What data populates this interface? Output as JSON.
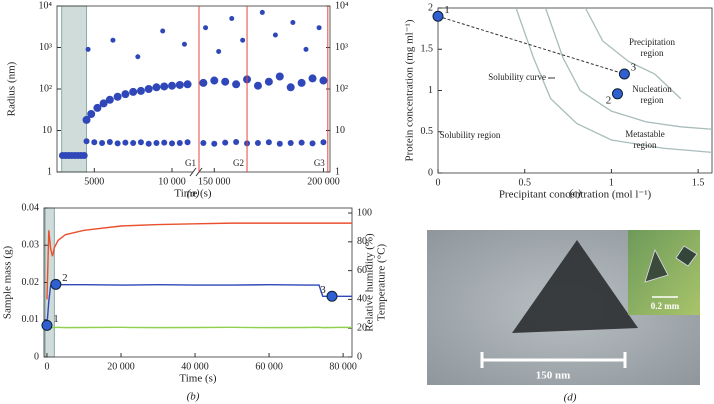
{
  "chart_data": [
    {
      "type": "scatter",
      "caption": "(a)",
      "x_label": "Time (s)",
      "y_label": "Radius (nm)",
      "log_y": true,
      "x_segments": [
        {
          "xlim": [
            2600,
            11350
          ],
          "xticks": [
            5000,
            {
              "value": 10000,
              "label": "10 000"
            }
          ]
        },
        {
          "xlim": [
            143000,
            203000
          ],
          "xticks": [
            {
              "value": 150000,
              "label": "150 000"
            },
            {
              "value": 200000,
              "label": "200 000"
            }
          ]
        }
      ],
      "ylim": [
        1,
        10000
      ],
      "yticks": [
        1,
        10,
        {
          "value": 100,
          "label": "10²"
        },
        {
          "value": 1000,
          "label": "10³"
        },
        {
          "value": 10000,
          "label": "10⁴"
        }
      ],
      "shaded_span": [
        2900,
        4500
      ],
      "shade_color": "#cfdcd9",
      "series": [
        {
          "color": "#2f47b8",
          "marker_size": 3.5,
          "x": [
            2950,
            3150,
            3350,
            3550,
            3750,
            3950,
            4150,
            4350
          ],
          "values": [
            2.5,
            2.5,
            2.5,
            2.5,
            2.5,
            2.5,
            2.5,
            2.5
          ]
        },
        {
          "color": "#2f47b8",
          "marker_size": 3,
          "x": [
            4500,
            5000,
            5500,
            6000,
            6500,
            7000,
            7500,
            8000,
            8500,
            9000,
            9500,
            10000,
            10500,
            11000,
            145000,
            150000,
            155000,
            160000,
            165000,
            170000,
            175000,
            180000,
            185000,
            190000,
            195000,
            200000
          ],
          "values": [
            5.5,
            5.2,
            5,
            5.3,
            4.9,
            5.1,
            5,
            5.2,
            4.8,
            5,
            5.1,
            4.9,
            5,
            5.2,
            5,
            4.8,
            5.1,
            5.3,
            4.9,
            5,
            5.2,
            4.8,
            5,
            5.1,
            4.9,
            5.2
          ]
        },
        {
          "color": "#2f47b8",
          "marker_size": 4,
          "x": [
            4500,
            4800,
            5200,
            5600,
            6000,
            6500,
            7000,
            7500,
            8000,
            8500,
            9000,
            9500,
            10000,
            10500,
            11000,
            145000,
            150000,
            155000,
            160000,
            165000,
            170000,
            175000,
            180000,
            185000,
            190000,
            195000,
            200000
          ],
          "values": [
            18,
            25,
            35,
            45,
            55,
            65,
            75,
            85,
            90,
            100,
            110,
            115,
            120,
            125,
            130,
            140,
            160,
            150,
            130,
            170,
            120,
            150,
            200,
            110,
            140,
            180,
            160
          ]
        },
        {
          "color": "#2f47b8",
          "marker_size": 2.5,
          "x": [
            4600,
            6200,
            7800,
            9400,
            10800,
            146000,
            152000,
            158000,
            163000,
            172000,
            178000,
            186000,
            192000,
            198000
          ],
          "values": [
            900,
            1500,
            600,
            2500,
            1200,
            3000,
            800,
            5000,
            1500,
            7000,
            2000,
            4000,
            900,
            3000
          ]
        }
      ],
      "guides": {
        "x": [
          143000,
          165000,
          202000
        ],
        "labels": [
          "G1",
          "G2",
          "G3"
        ],
        "color": "#e8463a"
      }
    },
    {
      "type": "line",
      "caption": "(b)",
      "x_label": "Time (s)",
      "y_label": "Sample mass (g)",
      "y2_labels": [
        "Relative humidity (%)",
        "Temperature (°C)"
      ],
      "xlim": [
        -800,
        82400
      ],
      "xticks": [
        0,
        {
          "value": 20000,
          "label": "20 000"
        },
        {
          "value": 40000,
          "label": "40 000"
        },
        {
          "value": 60000,
          "label": "60 000"
        },
        {
          "value": 80000,
          "label": "80 000"
        }
      ],
      "ylim": [
        0,
        0.04
      ],
      "yticks": [
        0,
        0.01,
        0.02,
        0.03,
        0.04
      ],
      "y2lim": [
        0,
        103.5
      ],
      "y2ticks": [
        0,
        20,
        40,
        60,
        80,
        100
      ],
      "shaded_span": [
        -500,
        2000
      ],
      "shade_color": "#cfdcd9",
      "x": [
        0,
        500,
        1000,
        1500,
        2000,
        3000,
        5000,
        10000,
        20000,
        30000,
        40000,
        50000,
        60000,
        70000,
        73500,
        74500,
        77000,
        80000,
        82400
      ],
      "series": [
        {
          "color": "#2f47b8",
          "values": [
            0.0085,
            0.015,
            0.0192,
            0.0195,
            0.0195,
            0.0194,
            0.0194,
            0.0194,
            0.0193,
            0.0194,
            0.0193,
            0.0193,
            0.0194,
            0.0193,
            0.0193,
            0.0163,
            0.0163,
            0.0163,
            0.0163
          ]
        },
        {
          "color": "#e8502e",
          "axis": "y2",
          "values": [
            40,
            88,
            75,
            70,
            76,
            81,
            85,
            88,
            91,
            92,
            92.5,
            93,
            93,
            93,
            93,
            93,
            93,
            93,
            93
          ]
        },
        {
          "color": "#8fd14f",
          "axis": "y2",
          "values": [
            20.5,
            20.3,
            20.6,
            20.4,
            20.5,
            20.6,
            20.4,
            20.5,
            20.6,
            20.4,
            20.5,
            20.6,
            20.4,
            20.5,
            20.6,
            20.4,
            20.5,
            20.6,
            20.5
          ]
        }
      ],
      "points": {
        "x": [
          0,
          2400,
          77000
        ],
        "values": [
          0.0085,
          0.0195,
          0.0163
        ],
        "labels": [
          "1",
          "2",
          "3"
        ],
        "color": "#2f5fd0"
      }
    },
    {
      "type": "phase",
      "caption": "(c)",
      "x_label": "Precipitant concentration (mol l⁻¹)",
      "y_label": "Protein concentration (mg ml⁻¹)",
      "xlim": [
        0,
        1.58
      ],
      "xticks": [
        0,
        0.5,
        1,
        1.5
      ],
      "ylim": [
        0,
        2
      ],
      "yticks": [
        0,
        0.5,
        1,
        1.5,
        2
      ],
      "curve_color": "#a9bcbc",
      "curves": [
        {
          "x": [
            0.45,
            0.55,
            0.65,
            0.8,
            1.0,
            1.3,
            1.58
          ],
          "values": [
            2,
            1.4,
            0.9,
            0.6,
            0.4,
            0.3,
            0.25
          ]
        },
        {
          "x": [
            0.62,
            0.72,
            0.82,
            1.0,
            1.2,
            1.4,
            1.58
          ],
          "values": [
            2,
            1.4,
            1.0,
            0.75,
            0.62,
            0.56,
            0.53
          ]
        },
        {
          "x": [
            0.85,
            0.95,
            1.1,
            1.25,
            1.35,
            1.4
          ],
          "values": [
            2,
            1.6,
            1.35,
            1.2,
            1.0,
            0.9
          ]
        }
      ],
      "points": {
        "x": [
          0,
          1.035,
          1.075
        ],
        "values": [
          1.9,
          0.96,
          1.2
        ],
        "labels": [
          "1",
          "2",
          "3"
        ],
        "color": "#2f5fd0"
      },
      "region_labels": [
        "Precipitation region",
        "Nucleation region",
        "Metastable region",
        "Solubility region",
        "Solubility curve"
      ]
    }
  ],
  "image_panel": {
    "caption": "(d)",
    "scale_bar": "150 nm",
    "inset_scale_bar": "0.2 mm"
  }
}
